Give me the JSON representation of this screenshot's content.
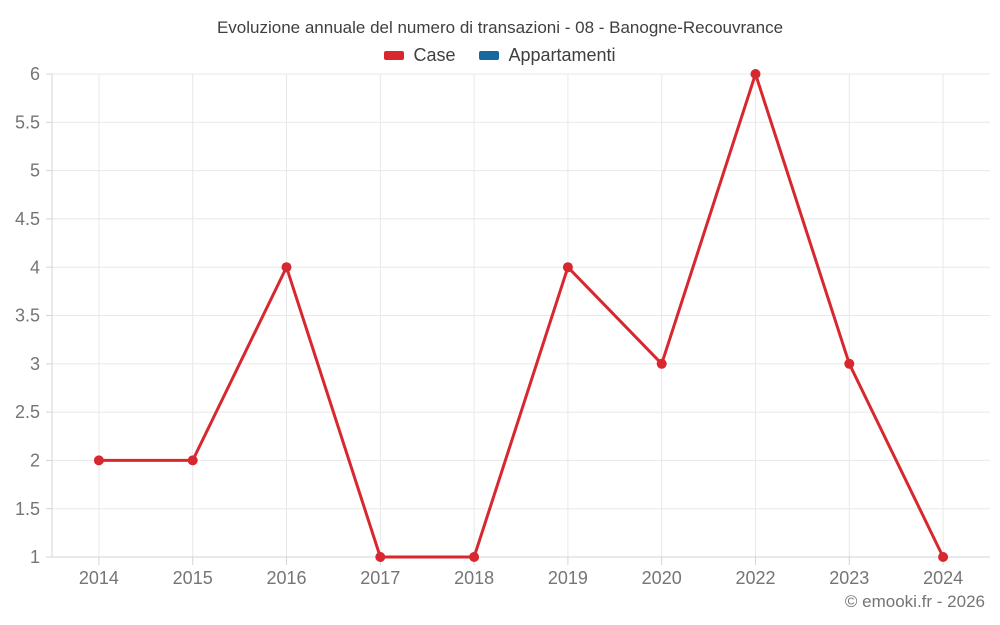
{
  "page": {
    "title": "Evoluzione annuale del numero di transazioni - 08 - Banogne-Recouvrance",
    "copyright": "© emooki.fr - 2026"
  },
  "legend": {
    "items": [
      {
        "label": "Case",
        "color": "#d7282f"
      },
      {
        "label": "Appartamenti",
        "color": "#15699f"
      }
    ]
  },
  "chart_data": {
    "type": "line",
    "title": "Evoluzione annuale del numero di transazioni - 08 - Banogne-Recouvrance",
    "categories": [
      "2014",
      "2015",
      "2016",
      "2017",
      "2018",
      "2019",
      "2020",
      "2022",
      "2023",
      "2024"
    ],
    "series": [
      {
        "name": "Case",
        "color": "#d7282f",
        "values": [
          2,
          2,
          4,
          1,
          1,
          4,
          3,
          6,
          3,
          1
        ]
      },
      {
        "name": "Appartamenti",
        "color": "#15699f",
        "values": []
      }
    ],
    "xlabel": "",
    "ylabel": "",
    "ylim": [
      1,
      6
    ],
    "yticks": [
      1,
      1.5,
      2,
      2.5,
      3,
      3.5,
      4,
      4.5,
      5,
      5.5,
      6
    ],
    "grid": true,
    "legend_position": "top"
  }
}
